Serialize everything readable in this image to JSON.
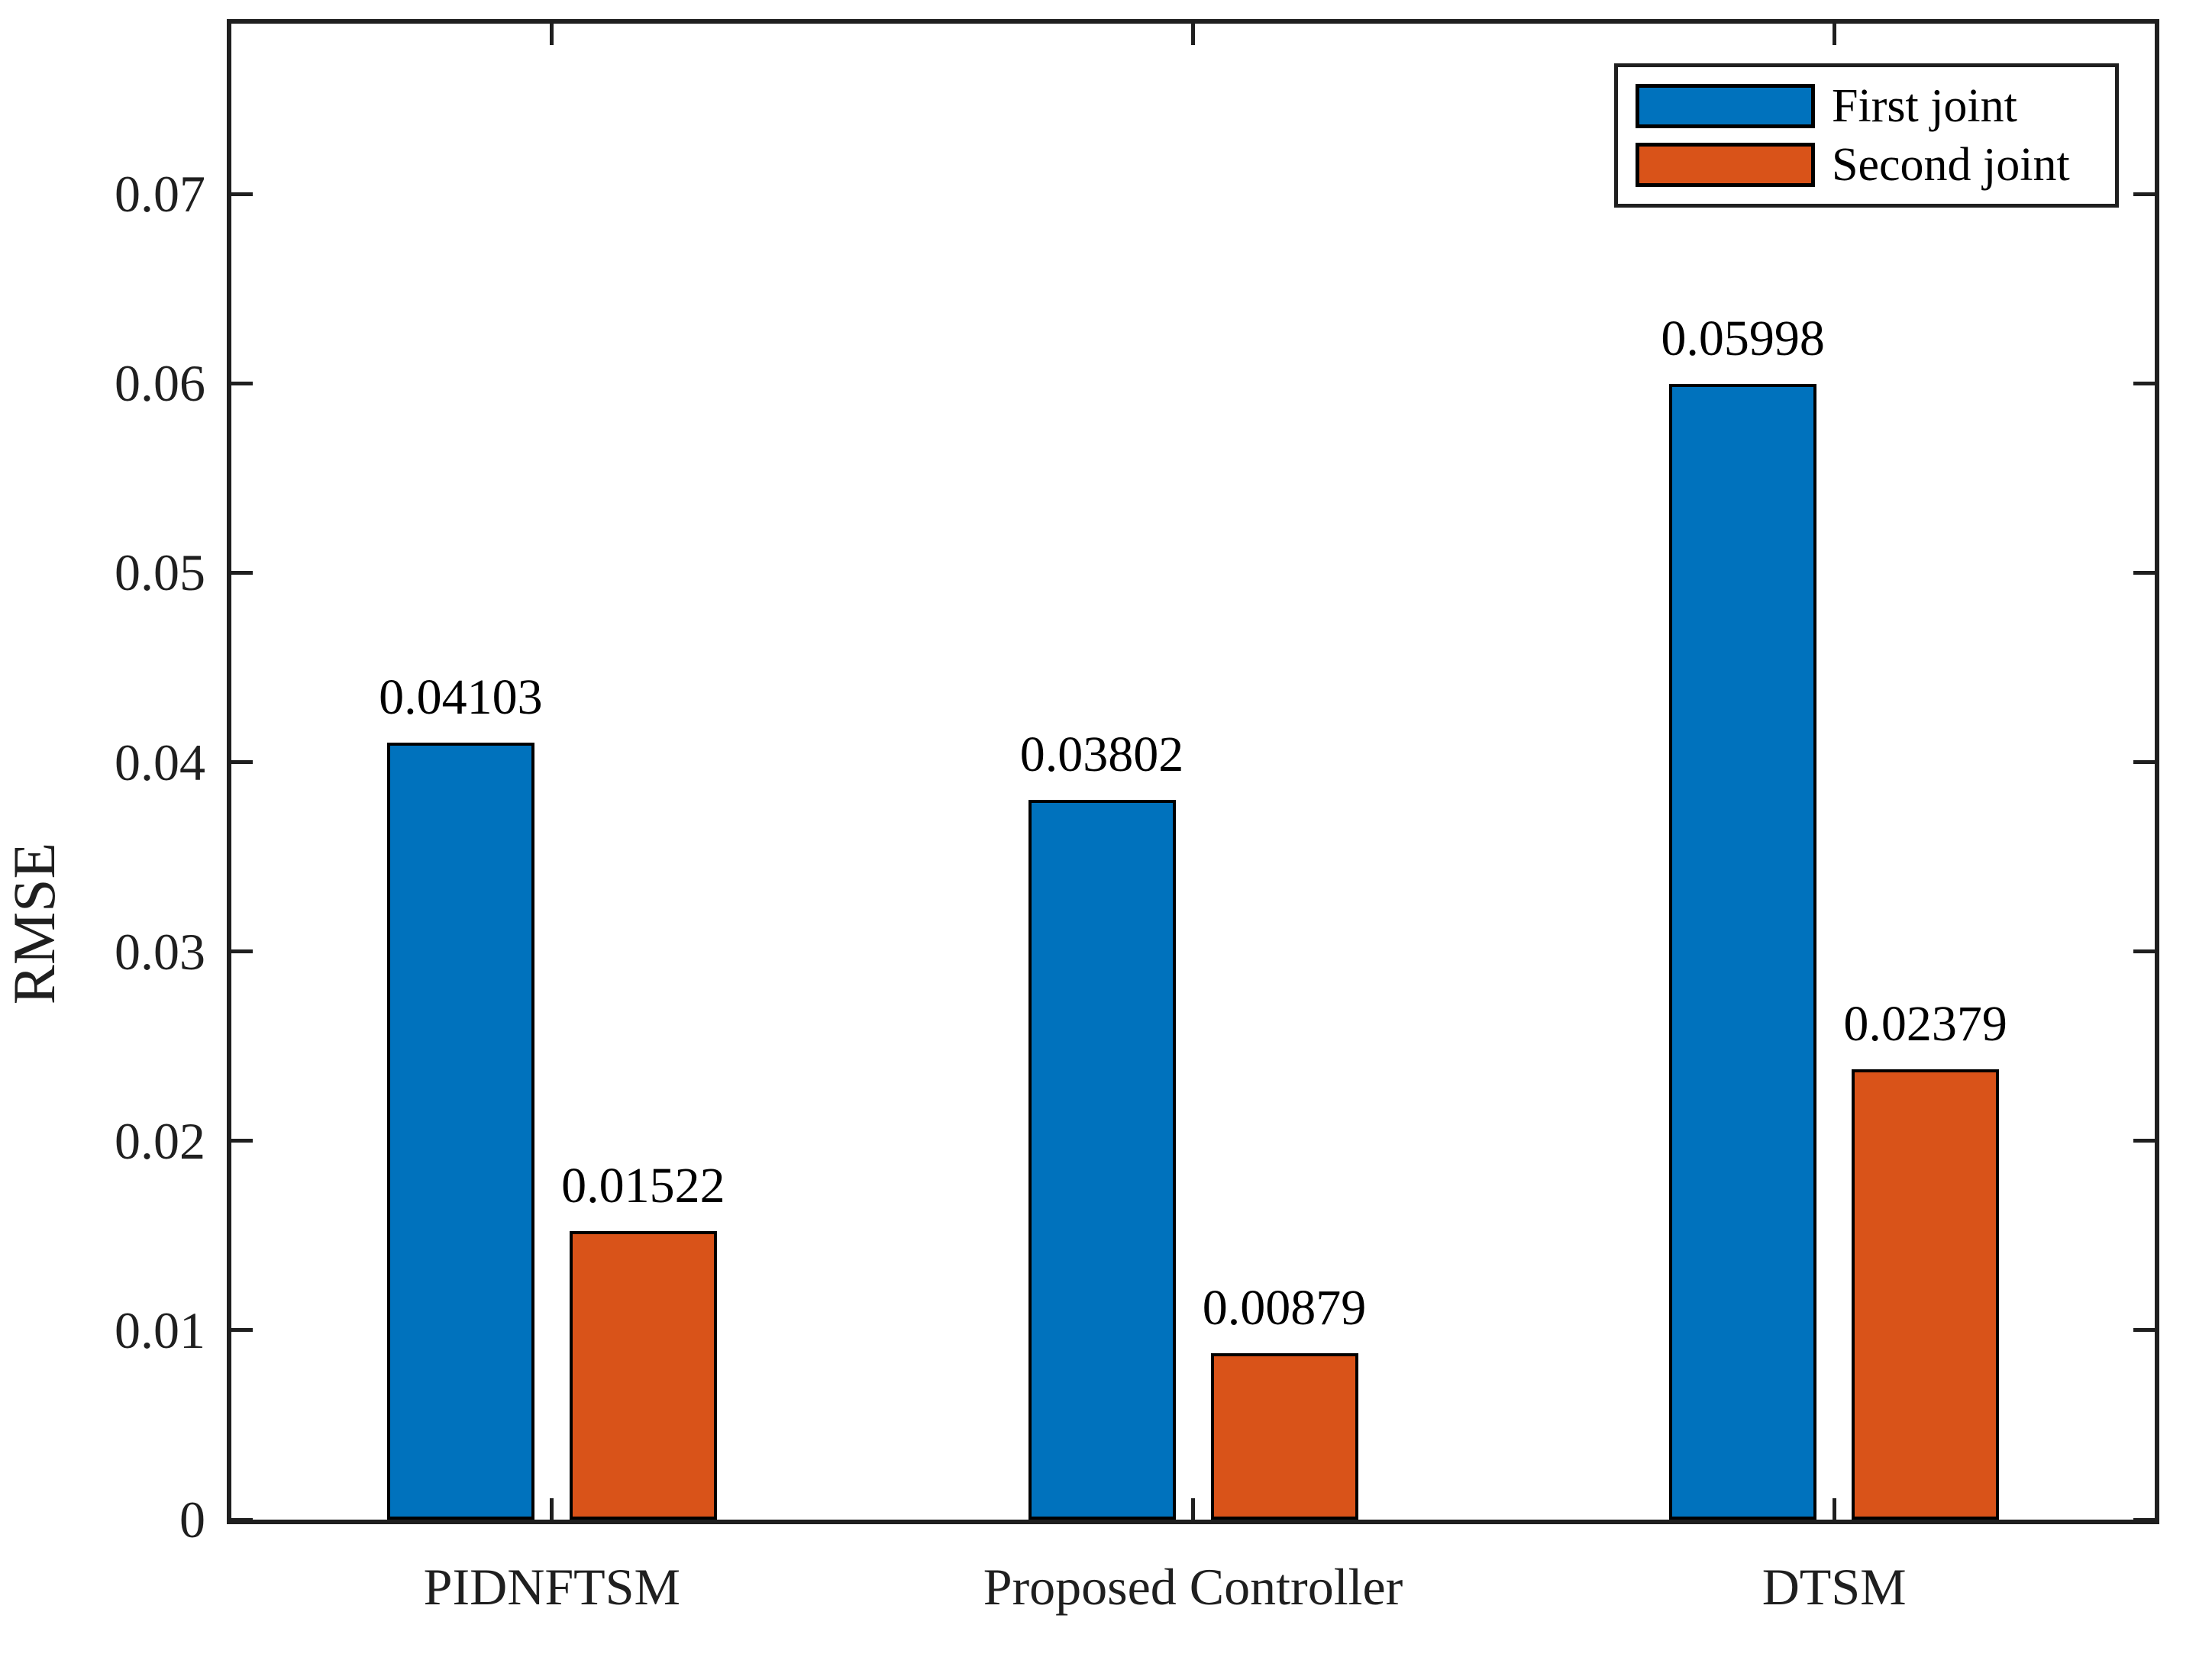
{
  "chart_data": {
    "type": "bar",
    "title": "",
    "xlabel": "",
    "ylabel": "RMSE",
    "categories": [
      "PIDNFTSM",
      "Proposed Controller",
      "DTSM"
    ],
    "series": [
      {
        "name": "First joint",
        "color": "#0072BD",
        "values": [
          0.04103,
          0.03802,
          0.05998
        ],
        "labels": [
          "0.04103",
          "0.03802",
          "0.05998"
        ]
      },
      {
        "name": "Second joint",
        "color": "#D95319",
        "values": [
          0.01522,
          0.00879,
          0.02379
        ],
        "labels": [
          "0.01522",
          "0.00879",
          "0.02379"
        ]
      }
    ],
    "ylim": [
      0,
      0.079
    ],
    "yticks": [
      0,
      0.01,
      0.02,
      0.03,
      0.04,
      0.05,
      0.06,
      0.07
    ],
    "ytick_labels": [
      "0",
      "0.01",
      "0.02",
      "0.03",
      "0.04",
      "0.05",
      "0.06",
      "0.07"
    ],
    "grid": false,
    "legend_position": "top-right",
    "bar_edge_color": "#000000",
    "axis_color": "#1f1f1f"
  }
}
